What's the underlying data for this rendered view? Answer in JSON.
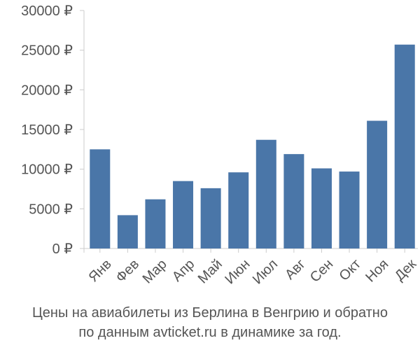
{
  "chart_data": {
    "type": "bar",
    "categories": [
      "Янв",
      "Фев",
      "Мар",
      "Апр",
      "Май",
      "Июн",
      "Июл",
      "Авг",
      "Сен",
      "Окт",
      "Ноя",
      "Дек"
    ],
    "series": [
      {
        "values": [
          12500,
          4200,
          6200,
          8500,
          7600,
          9600,
          13700,
          11900,
          10100,
          9700,
          16100,
          25700
        ],
        "color": "#4a76a8"
      }
    ],
    "y_ticks": [
      "0 ₽",
      "5000 ₽",
      "10000 ₽",
      "15000 ₽",
      "20000 ₽",
      "25000 ₽",
      "30000 ₽"
    ],
    "y_tick_values": [
      0,
      5000,
      10000,
      15000,
      20000,
      25000,
      30000
    ],
    "ylim": [
      0,
      30000
    ],
    "grid": false,
    "legend": "none",
    "caption_line1": "Цены на авиабилеты из Берлина в Венгрию и обратно",
    "caption_line2": "по данным avticket.ru в динамике за год."
  }
}
